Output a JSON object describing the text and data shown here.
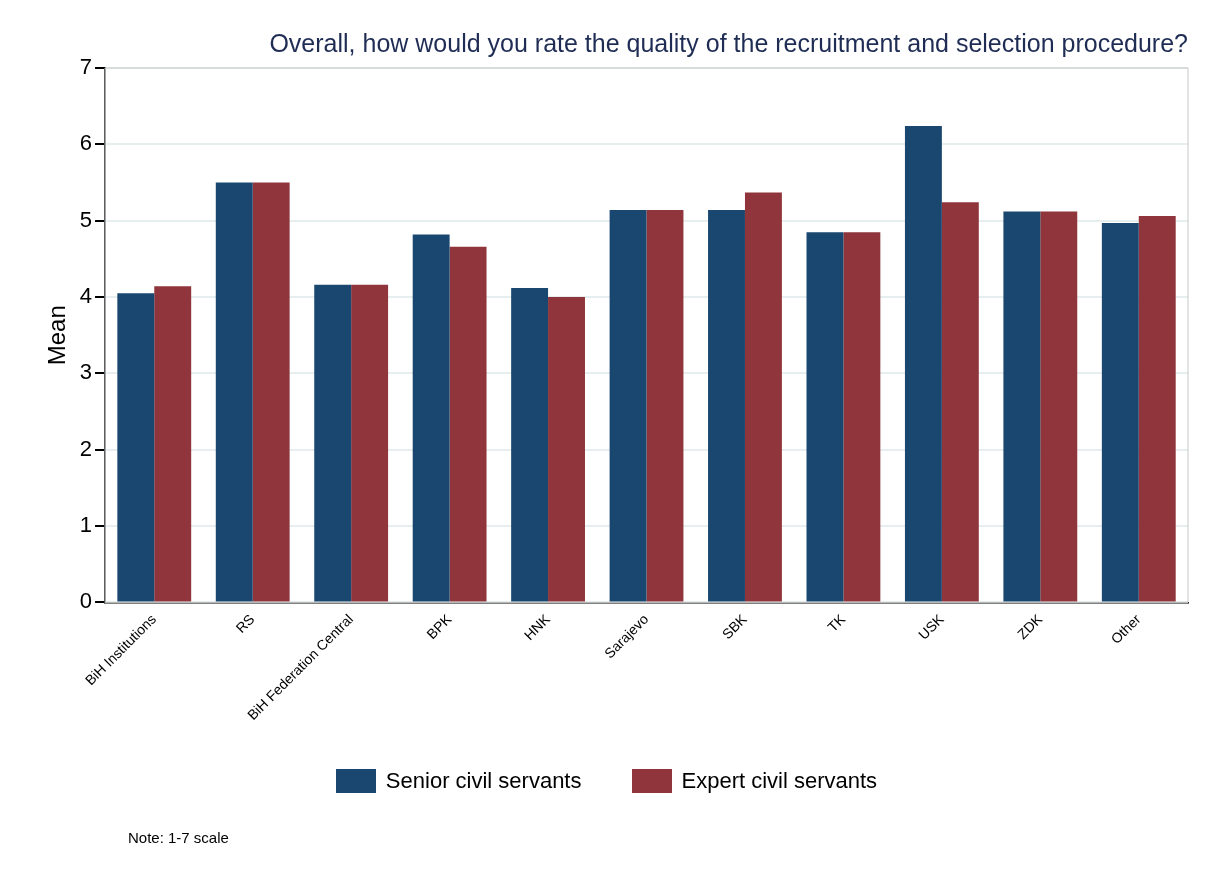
{
  "chart_data": {
    "type": "bar",
    "title": "Overall, how would you rate the quality of the recruitment and selection procedure?",
    "ylabel": "Mean",
    "categories": [
      "BiH Institutions",
      "RS",
      "BiH Federation Central",
      "BPK",
      "HNK",
      "Sarajevo",
      "SBK",
      "TK",
      "USK",
      "ZDK",
      "Other"
    ],
    "series": [
      {
        "name": "Senior civil servants",
        "color": "#1a476f",
        "values": [
          4.05,
          5.5,
          4.16,
          4.82,
          4.12,
          5.14,
          5.14,
          4.85,
          6.24,
          5.12,
          4.97
        ]
      },
      {
        "name": "Expert civil servants",
        "color": "#90353b",
        "values": [
          4.14,
          5.5,
          4.16,
          4.66,
          4.0,
          5.14,
          5.37,
          4.85,
          5.24,
          5.12,
          5.06
        ]
      }
    ],
    "ylim": [
      0,
      7
    ],
    "yticks": [
      0,
      1,
      2,
      3,
      4,
      5,
      6,
      7
    ],
    "grid": "y",
    "legend": "bottom",
    "annotations": [
      "Note: 1-7 scale"
    ]
  }
}
